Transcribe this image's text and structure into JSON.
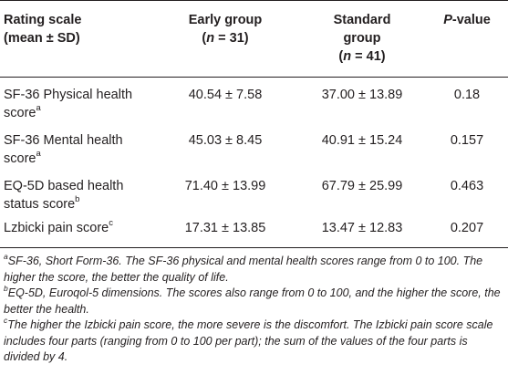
{
  "header": {
    "col1_line1": "Rating scale",
    "col1_line2": "(mean ± SD)",
    "col2_line1": "Early group",
    "col2_n": "n",
    "col2_value": " = 31)",
    "col3_line1": "Standard",
    "col3_line2": "group",
    "col3_n": "n",
    "col3_value": " = 41)",
    "col4_p": "P",
    "col4_rest": "-value"
  },
  "rows": [
    {
      "label_line1": "SF-36 Physical health",
      "label_line2": "score",
      "sup": "a",
      "early": "40.54 ± 7.58",
      "standard": "37.00 ± 13.89",
      "p": "0.18"
    },
    {
      "label_line1": "SF-36 Mental health",
      "label_line2": "score",
      "sup": "a",
      "early": "45.03 ± 8.45",
      "standard": "40.91 ± 15.24",
      "p": "0.157"
    },
    {
      "label_line1": "EQ-5D based health",
      "label_line2": "status score",
      "sup": "b",
      "early": "71.40 ± 13.99",
      "standard": "67.79 ± 25.99",
      "p": "0.463"
    },
    {
      "label_line1": "Lzbicki pain score",
      "label_line2": "",
      "sup": "c",
      "early": "17.31 ± 13.85",
      "standard": "13.47 ± 12.83",
      "p": "0.207"
    }
  ],
  "footnotes": [
    {
      "mark": "a",
      "text": "SF-36, Short Form-36. The SF-36 physical and mental health scores range from 0 to 100. The higher the score, the better the quality of life."
    },
    {
      "mark": "b",
      "text": "EQ-5D, Euroqol-5 dimensions. The scores also range from 0 to 100, and the higher the score, the better the health."
    },
    {
      "mark": "c",
      "text": "The higher the Izbicki pain score, the more severe is the discomfort. The Izbicki pain score scale includes four parts (ranging from 0 to 100 per part); the sum of the values of the four parts is divided by 4."
    }
  ]
}
